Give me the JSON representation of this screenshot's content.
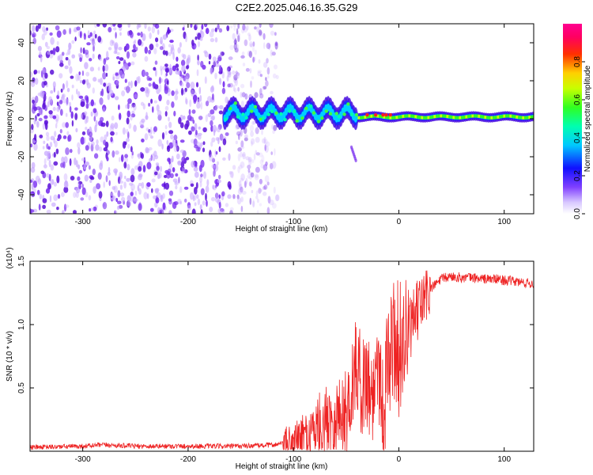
{
  "figure_title": "C2E2.2025.046.16.35.G29",
  "colors": {
    "scatter_low": "#c8a8ff",
    "scatter_mid": "#7a30f0",
    "scatter_dark": "#5a10d8",
    "snr_line": "#ee2222"
  },
  "chart_data": [
    {
      "type": "heatmap",
      "xlabel": "Height of straight line (km)",
      "ylabel": "Frequency (Hz)",
      "xlim": [
        -350,
        128
      ],
      "ylim": [
        -50,
        50
      ],
      "x_ticks": [
        -300,
        -200,
        -100,
        0,
        100
      ],
      "y_ticks": [
        -40,
        -20,
        0,
        20,
        40
      ],
      "colorbar": {
        "label": "Normalized spectral amplitude",
        "range": [
          0,
          1
        ],
        "ticks": [
          "0.0",
          "0.2",
          "0.4",
          "0.6",
          "0.8"
        ]
      },
      "regions": [
        {
          "x_range": [
            -350,
            -140
          ],
          "freq_range": [
            -50,
            50
          ],
          "amplitude": "low, noise"
        },
        {
          "x_range": [
            -165,
            -40
          ],
          "freq_center": 3,
          "amplitude": "0.3-0.6"
        },
        {
          "x_range": [
            -40,
            128
          ],
          "freq_center": 1,
          "amplitude": "0.5-1.0"
        },
        {
          "x_range": [
            -45,
            -40
          ],
          "freq_range": [
            -22,
            -15
          ],
          "amplitude": "low"
        }
      ]
    },
    {
      "type": "line",
      "xlabel": "Height of straight line (km)",
      "ylabel": "SNR (10 * v/v)",
      "y_multiplier": "(x10⁴)",
      "xlim": [
        -350,
        128
      ],
      "ylim": [
        0,
        1.5
      ],
      "x_ticks": [
        -300,
        -200,
        -100,
        0,
        100
      ],
      "y_ticks": [
        "0.5",
        "1.0",
        "1.5"
      ],
      "series": [
        {
          "x": [
            -350,
            -300,
            -280,
            -250,
            -200,
            -150,
            -120,
            -100,
            -90,
            -80,
            -70,
            -60,
            -50,
            -45,
            -40,
            -35,
            -30,
            -25,
            -20,
            -15,
            -10,
            -5,
            0,
            5,
            10,
            15,
            20,
            30,
            40,
            50,
            60,
            70,
            80,
            90,
            100,
            110,
            120,
            128
          ],
          "y": [
            0.03,
            0.04,
            0.05,
            0.04,
            0.04,
            0.04,
            0.05,
            0.07,
            0.1,
            0.18,
            0.25,
            0.28,
            0.3,
            0.5,
            0.7,
            0.5,
            0.6,
            0.4,
            0.8,
            0.3,
            0.7,
            0.9,
            0.8,
            0.9,
            0.95,
            1.05,
            1.15,
            1.28,
            1.36,
            1.38,
            1.37,
            1.37,
            1.36,
            1.36,
            1.35,
            1.34,
            1.33,
            1.32
          ]
        }
      ]
    }
  ]
}
